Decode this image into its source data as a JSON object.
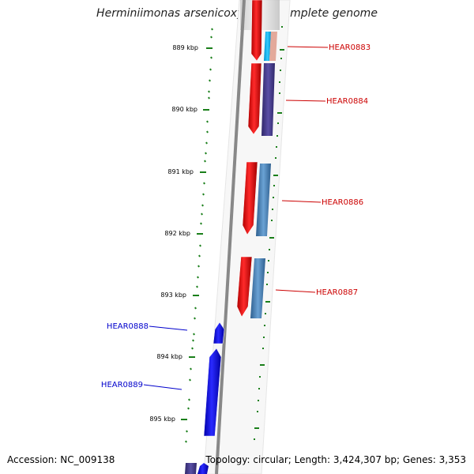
{
  "title": "Herminiimonas arsenicoxydans, complete genome",
  "footer": {
    "accession": "Accession: NC_009138",
    "summary": "Topology: circular; Length: 3,424,307 bp; Genes: 3,353"
  },
  "colors": {
    "forward_cds": "#ff0000",
    "reverse_cds": "#0000ff",
    "cog_purple": "#4b3f8f",
    "cog_steelblue": "#4682b4",
    "cog_cyan": "#00bfff",
    "tick_green": "#1a7f1a",
    "backbone": "#888888"
  },
  "kbp_labels": [
    "889 kbp",
    "890 kbp",
    "891 kbp",
    "892 kbp",
    "893 kbp",
    "894 kbp",
    "895 kbp"
  ],
  "genes": {
    "forward": [
      "HEAR0883",
      "HEAR0884",
      "HEAR0886",
      "HEAR0887"
    ],
    "reverse": [
      "HEAR0888",
      "HEAR0889"
    ]
  }
}
